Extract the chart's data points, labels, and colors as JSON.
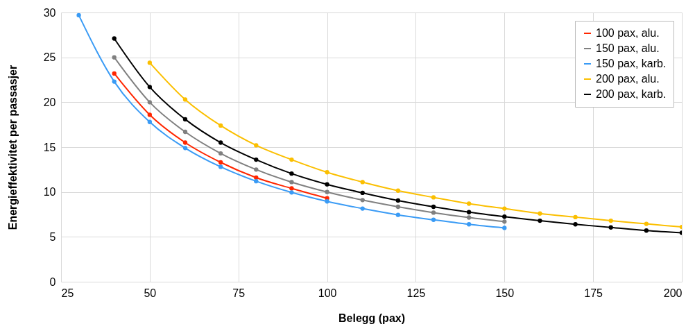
{
  "chart_data": {
    "type": "line",
    "xlabel": "Belegg (pax)",
    "ylabel": "Energieffektivitet per passasjer",
    "xlim": [
      25,
      200
    ],
    "xticks": [
      25,
      50,
      75,
      100,
      125,
      150,
      175,
      200
    ],
    "ylim": [
      0,
      30
    ],
    "yticks": [
      0,
      5,
      10,
      15,
      20,
      25,
      30
    ],
    "grid": true,
    "legend": "top right",
    "marker": "circle",
    "line_style": "solid",
    "x": [
      30,
      40,
      50,
      60,
      70,
      80,
      90,
      100,
      110,
      120,
      130,
      140,
      150,
      160,
      170,
      180,
      190,
      200
    ],
    "series": [
      {
        "name": "100 pax, alu.",
        "color": "#ff2600",
        "values": [
          null,
          23.2,
          18.6,
          15.5,
          13.3,
          11.6,
          10.4,
          9.3,
          null,
          null,
          null,
          null,
          null,
          null,
          null,
          null,
          null,
          null
        ]
      },
      {
        "name": "150 pax, alu.",
        "color": "#808080",
        "values": [
          null,
          25.0,
          20.0,
          16.7,
          14.3,
          12.5,
          11.1,
          10.0,
          9.1,
          8.35,
          7.7,
          7.15,
          6.7,
          null,
          null,
          null,
          null,
          null
        ]
      },
      {
        "name": "150 pax, karb.",
        "color": "#3a9bf5",
        "values": [
          29.7,
          22.3,
          17.8,
          14.9,
          12.8,
          11.2,
          9.95,
          8.95,
          8.15,
          7.45,
          6.9,
          6.4,
          6.0,
          null,
          null,
          null,
          null,
          null
        ]
      },
      {
        "name": "200 pax, alu.",
        "color": "#fbbf00",
        "values": [
          null,
          null,
          24.4,
          20.3,
          17.4,
          15.2,
          13.6,
          12.2,
          11.1,
          10.15,
          9.4,
          8.7,
          8.15,
          7.6,
          7.2,
          6.8,
          6.45,
          6.1
        ]
      },
      {
        "name": "200 pax, karb.",
        "color": "#000000",
        "values": [
          null,
          27.1,
          21.7,
          18.1,
          15.5,
          13.6,
          12.05,
          10.85,
          9.9,
          9.05,
          8.35,
          7.75,
          7.25,
          6.8,
          6.4,
          6.05,
          5.7,
          5.45
        ]
      }
    ]
  }
}
